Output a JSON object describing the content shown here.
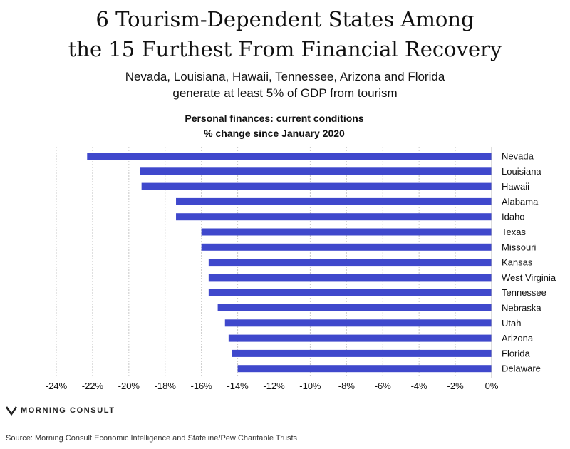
{
  "header": {
    "title_line1": "6 Tourism-Dependent States Among",
    "title_line2": "the 15 Furthest From Financial Recovery",
    "subtitle_line1": "Nevada, Louisiana, Hawaii, Tennessee, Arizona and Florida",
    "subtitle_line2": "generate at least 5% of GDP from tourism"
  },
  "chart_data": {
    "type": "bar",
    "orientation": "horizontal",
    "title_line1": "Personal finances: current conditions",
    "title_line2": "% change since January 2020",
    "categories": [
      "Nevada",
      "Louisiana",
      "Hawaii",
      "Alabama",
      "Idaho",
      "Texas",
      "Missouri",
      "Kansas",
      "West Virginia",
      "Tennessee",
      "Nebraska",
      "Utah",
      "Arizona",
      "Florida",
      "Delaware"
    ],
    "values": [
      -22.3,
      -19.4,
      -19.3,
      -17.4,
      -17.4,
      -16.0,
      -16.0,
      -15.6,
      -15.6,
      -15.6,
      -15.1,
      -14.7,
      -14.5,
      -14.3,
      -14.0
    ],
    "xlim": [
      -24,
      0
    ],
    "xticks": [
      -24,
      -22,
      -20,
      -18,
      -16,
      -14,
      -12,
      -10,
      -8,
      -6,
      -4,
      -2,
      0
    ],
    "xtick_labels": [
      "-24%",
      "-22%",
      "-20%",
      "-18%",
      "-16%",
      "-14%",
      "-12%",
      "-10%",
      "-8%",
      "-6%",
      "-4%",
      "-2%",
      "0%"
    ],
    "grid": "vertical dashed",
    "bar_color": "#3f48cc"
  },
  "branding": {
    "logo_text": "MORNING CONSULT",
    "logo_icon": "morning-consult-logo-icon"
  },
  "footer": {
    "source": "Source: Morning Consult Economic Intelligence and Stateline/Pew Charitable Trusts"
  }
}
